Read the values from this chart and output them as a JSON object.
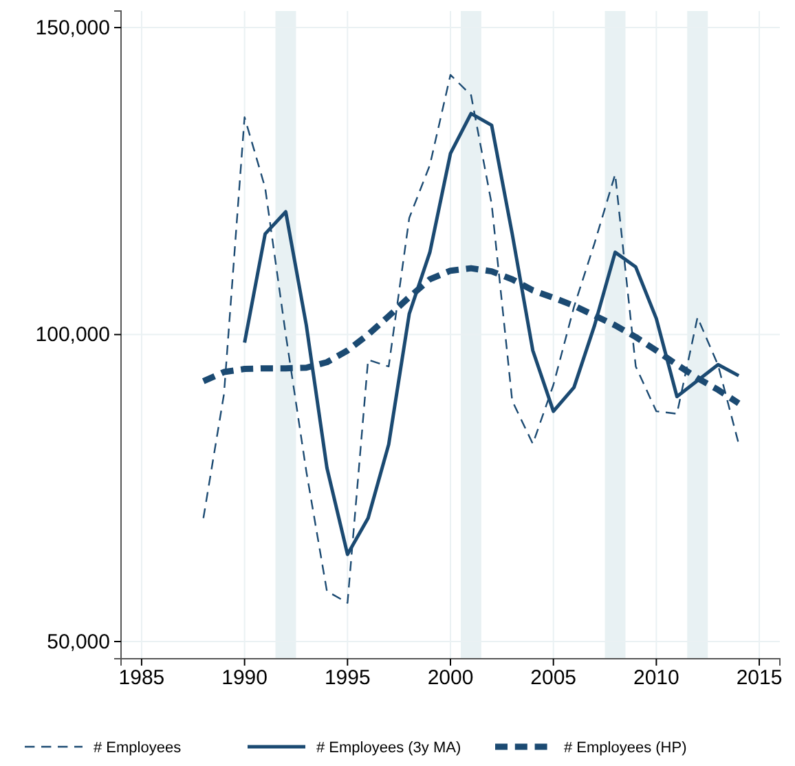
{
  "chart_data": {
    "type": "line",
    "x": [
      1988,
      1989,
      1990,
      1991,
      1992,
      1993,
      1994,
      1995,
      1996,
      1997,
      1998,
      1999,
      2000,
      2001,
      2002,
      2003,
      2004,
      2005,
      2006,
      2007,
      2008,
      2009,
      2010,
      2011,
      2012,
      2013,
      2014
    ],
    "series": [
      {
        "name": "# Employees",
        "color": "#1b4a72",
        "line_style": "dashed",
        "values": [
          70100,
          90300,
          135400,
          123900,
          100000,
          77700,
          58200,
          56300,
          95900,
          94800,
          119000,
          127600,
          142300,
          139000,
          121300,
          89200,
          82200,
          91800,
          104500,
          114900,
          126100,
          94800,
          87500,
          87100,
          102800,
          95000,
          82200
        ]
      },
      {
        "name": "# Employees (3y MA)",
        "color": "#1b4a72",
        "line_style": "solid",
        "values": [
          null,
          null,
          98700,
          116400,
          120000,
          101500,
          78300,
          64200,
          70100,
          82100,
          103400,
          113400,
          129500,
          136000,
          134100,
          116400,
          97400,
          87500,
          91400,
          101500,
          113400,
          111000,
          102600,
          89900,
          92500,
          95100,
          93300
        ]
      },
      {
        "name": "# Employees (HP)",
        "color": "#1b4a72",
        "line_style": "dashed",
        "values": [
          92400,
          93900,
          94400,
          94500,
          94500,
          94600,
          95500,
          97400,
          100000,
          103000,
          106100,
          109000,
          110400,
          110800,
          110300,
          109000,
          107200,
          106000,
          104700,
          103100,
          101500,
          99600,
          97400,
          95100,
          92900,
          91000,
          88800
        ]
      }
    ],
    "xlim": [
      1984,
      2016
    ],
    "xticks": [
      1985,
      1990,
      1995,
      2000,
      2005,
      2010,
      2015
    ],
    "ylim": [
      47200,
      152700
    ],
    "yticks": [
      {
        "value": 50000,
        "label": "50,000"
      },
      {
        "value": 100000,
        "label": "100,000"
      },
      {
        "value": 150000,
        "label": "150,000"
      }
    ],
    "bands": [
      {
        "axis": "x",
        "from": 1991.5,
        "to": 1992.5,
        "color": "#e8f1f3"
      },
      {
        "axis": "x",
        "from": 2000.5,
        "to": 2001.5,
        "color": "#e8f1f3"
      },
      {
        "axis": "x",
        "from": 2007.5,
        "to": 2008.5,
        "color": "#e8f1f3"
      },
      {
        "axis": "x",
        "from": 2011.5,
        "to": 2012.5,
        "color": "#e8f1f3"
      }
    ],
    "grid": true,
    "legend": "bottom"
  }
}
